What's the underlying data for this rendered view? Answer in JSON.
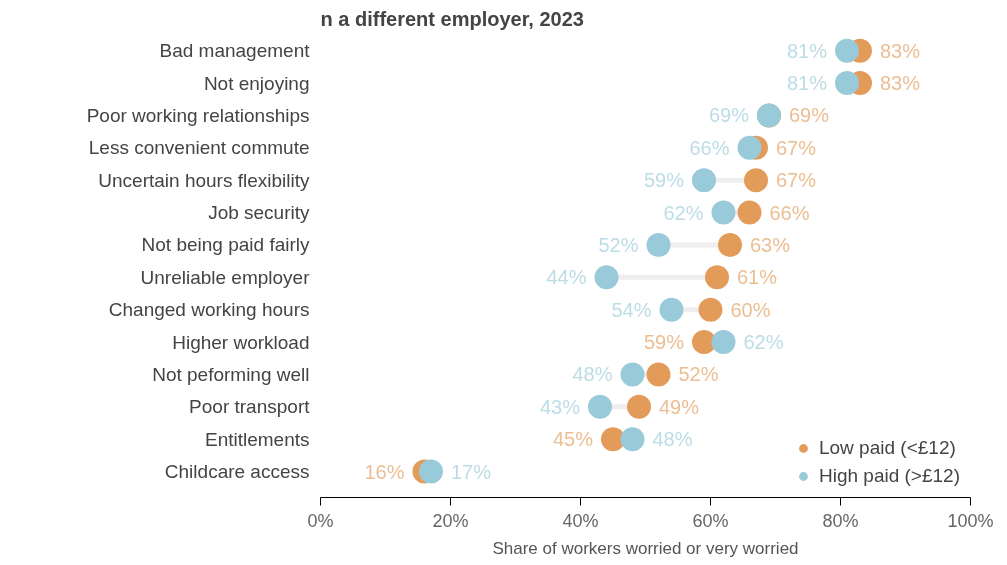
{
  "chart_data": {
    "type": "scatter",
    "title": "n a different employer, 2023",
    "xlabel": "Share of workers worried or very worried",
    "categories": [
      "Bad management",
      "Not enjoying",
      "Poor working relationships",
      "Less convenient commute",
      "Uncertain hours flexibility",
      "Job security",
      "Not being paid fairly",
      "Unreliable employer",
      "Changed working hours",
      "Higher workload",
      "Not peforming well",
      "Poor transport",
      "Entitlements",
      "Childcare access"
    ],
    "series": [
      {
        "name": "Low paid (<£12)",
        "color": "#e39b5a",
        "values": [
          83,
          83,
          69,
          67,
          67,
          66,
          63,
          61,
          60,
          59,
          52,
          49,
          45,
          16
        ],
        "value_labels": [
          "83%",
          "83%",
          "69%",
          "67%",
          "67%",
          "66%",
          "63%",
          "61%",
          "60%",
          "59%",
          "52%",
          "49%",
          "45%",
          "16%"
        ]
      },
      {
        "name": "High paid (>£12)",
        "color": "#98cad9",
        "values": [
          81,
          81,
          69,
          66,
          59,
          62,
          52,
          44,
          54,
          62,
          48,
          43,
          48,
          17
        ],
        "value_labels": [
          "81%",
          "81%",
          "69%",
          "66%",
          "59%",
          "62%",
          "52%",
          "44%",
          "54%",
          "62%",
          "48%",
          "43%",
          "48%",
          "17%"
        ]
      }
    ],
    "xlim": [
      0,
      100
    ],
    "xticks": [
      {
        "value": 0,
        "label": "0%"
      },
      {
        "value": 20,
        "label": "20%"
      },
      {
        "value": 40,
        "label": "40%"
      },
      {
        "value": 60,
        "label": "60%"
      },
      {
        "value": 80,
        "label": "80%"
      },
      {
        "value": 100,
        "label": "100%"
      }
    ],
    "orientation": "horizontal",
    "marker": "circle",
    "grid": false,
    "legend": "bottom right"
  }
}
